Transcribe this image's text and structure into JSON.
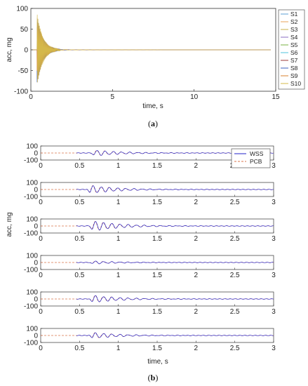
{
  "caption_a": {
    "open": "(",
    "letter": "a",
    "close": ")"
  },
  "caption_b": {
    "open": "(",
    "letter": "b",
    "close": ")"
  },
  "chart_data": [
    {
      "type": "line",
      "xlabel": "time, s",
      "ylabel": "acc, mg",
      "xlim": [
        0,
        15
      ],
      "ylim": [
        -100,
        100
      ],
      "xticks": [
        "0",
        "5",
        "10",
        "15"
      ],
      "yticks": [
        "100",
        "50",
        "0",
        "-50",
        "-100"
      ],
      "grid": false,
      "legend_position": "right-outside",
      "series": [
        {
          "name": "S1",
          "color": "#5a9fd4"
        },
        {
          "name": "S2",
          "color": "#e8a35a"
        },
        {
          "name": "S3",
          "color": "#c9b14a"
        },
        {
          "name": "S4",
          "color": "#8a6cc0"
        },
        {
          "name": "S5",
          "color": "#77b041"
        },
        {
          "name": "S6",
          "color": "#4fc3dd"
        },
        {
          "name": "S7",
          "color": "#9b3a3a"
        },
        {
          "name": "S8",
          "color": "#3a5fbf"
        },
        {
          "name": "S9",
          "color": "#d9812c"
        },
        {
          "name": "S10",
          "color": "#d4b84a"
        }
      ],
      "annotations": {
        "peak_time": 0.5,
        "peak_max": 88,
        "peak_min": -93,
        "decay_end": 1.8
      }
    },
    {
      "type": "line",
      "xlabel": "time, s",
      "ylabel": "acc, mg",
      "xlim": [
        0,
        3
      ],
      "ylim": [
        -100,
        100
      ],
      "xticks": [
        "0",
        "0.5",
        "1",
        "1.5",
        "2",
        "2.5",
        "3"
      ],
      "yticks": [
        "100",
        "0",
        "-100"
      ],
      "subplots": 6,
      "legend_position": "top-right",
      "series": [
        {
          "name": "WSS",
          "color": "#2020c8",
          "style": "solid"
        },
        {
          "name": "PCB",
          "color": "#d9734a",
          "style": "dashed"
        }
      ],
      "signal_start": [
        0.46,
        0.46,
        0.46,
        0.46,
        0.46,
        0.46
      ],
      "peak_time": [
        0.7,
        0.65,
        0.68,
        0.68,
        0.68,
        0.68
      ],
      "peak_amplitude": [
        40,
        55,
        70,
        20,
        50,
        40
      ]
    }
  ]
}
